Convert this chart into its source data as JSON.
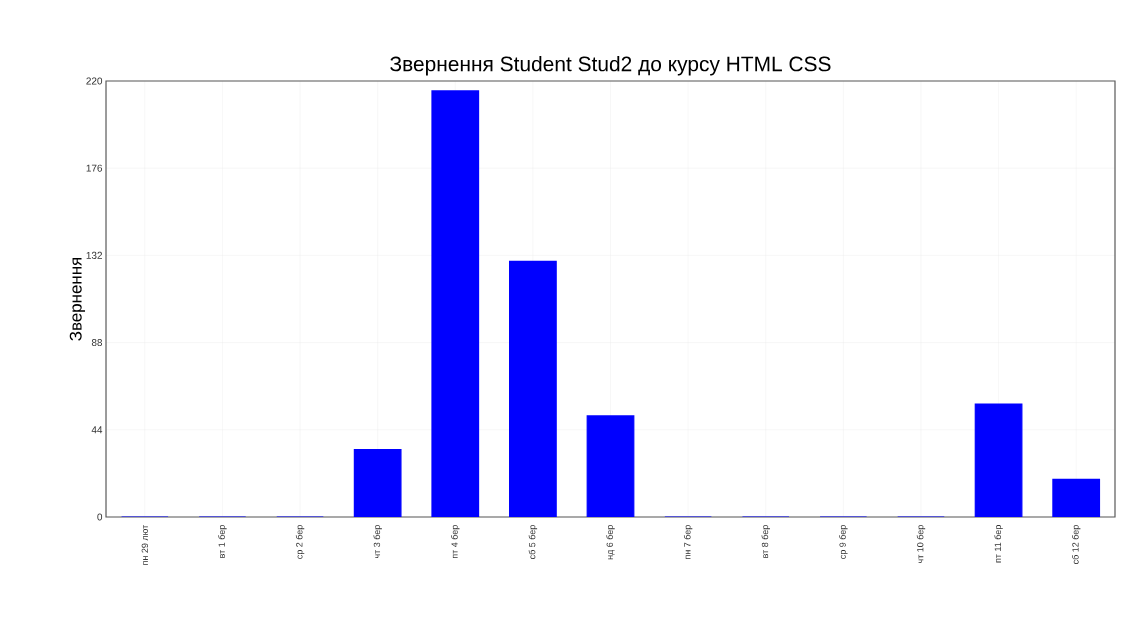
{
  "chart_data": {
    "type": "bar",
    "title": "Звернення Student Stud2 до курсу HTML CSS",
    "ylabel": "Звернення",
    "categories": [
      "пн 29 лют",
      "вт 1 бер",
      "ср 2 бер",
      "чт 3 бер",
      "пт 4 бер",
      "сб 5 бер",
      "нд 6 бер",
      "пн 7 бер",
      "вт 8 бер",
      "ср 9 бер",
      "чт 10 бер",
      "пт 11 бер",
      "сб 12 бер"
    ],
    "values": [
      0,
      0,
      0,
      34,
      215,
      129,
      51,
      0,
      0,
      0,
      0,
      57,
      19
    ],
    "color": "#0000ff",
    "ylim": [
      0,
      220
    ],
    "yticks": [
      0,
      44,
      88,
      132,
      176,
      220
    ],
    "grid": true
  }
}
